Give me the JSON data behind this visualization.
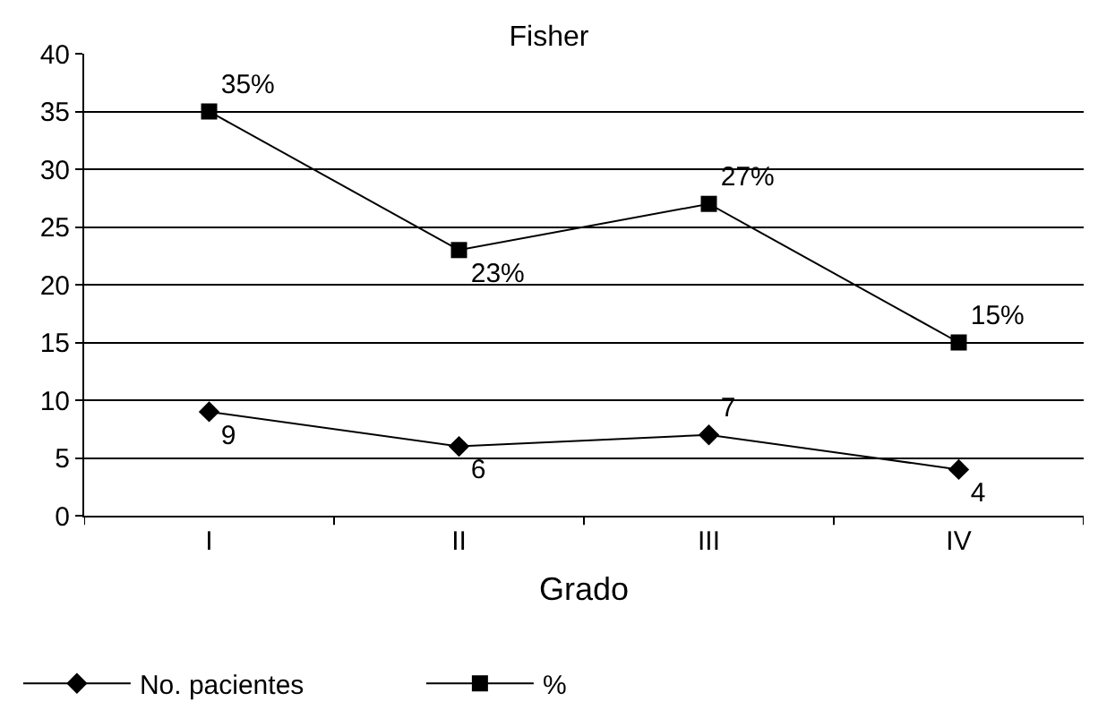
{
  "chart_data": {
    "type": "line",
    "title": "Fisher",
    "xlabel": "Grado",
    "categories": [
      "I",
      "II",
      "III",
      "IV"
    ],
    "series": [
      {
        "name": "No. pacientes",
        "color": "#000000",
        "marker": "diamond",
        "values": [
          9,
          6,
          7,
          4
        ],
        "value_labels": [
          "9",
          "6",
          "7",
          "4"
        ]
      },
      {
        "name": "%",
        "color": "#000000",
        "marker": "square",
        "values": [
          35,
          23,
          27,
          15
        ],
        "value_labels": [
          "35%",
          "23%",
          "27%",
          "15%"
        ]
      }
    ],
    "ylim": [
      0,
      40
    ],
    "yticks": [
      0,
      5,
      10,
      15,
      20,
      25,
      30,
      35,
      40
    ],
    "grid": "y",
    "legend": "bottom left",
    "line_style": "solid"
  }
}
